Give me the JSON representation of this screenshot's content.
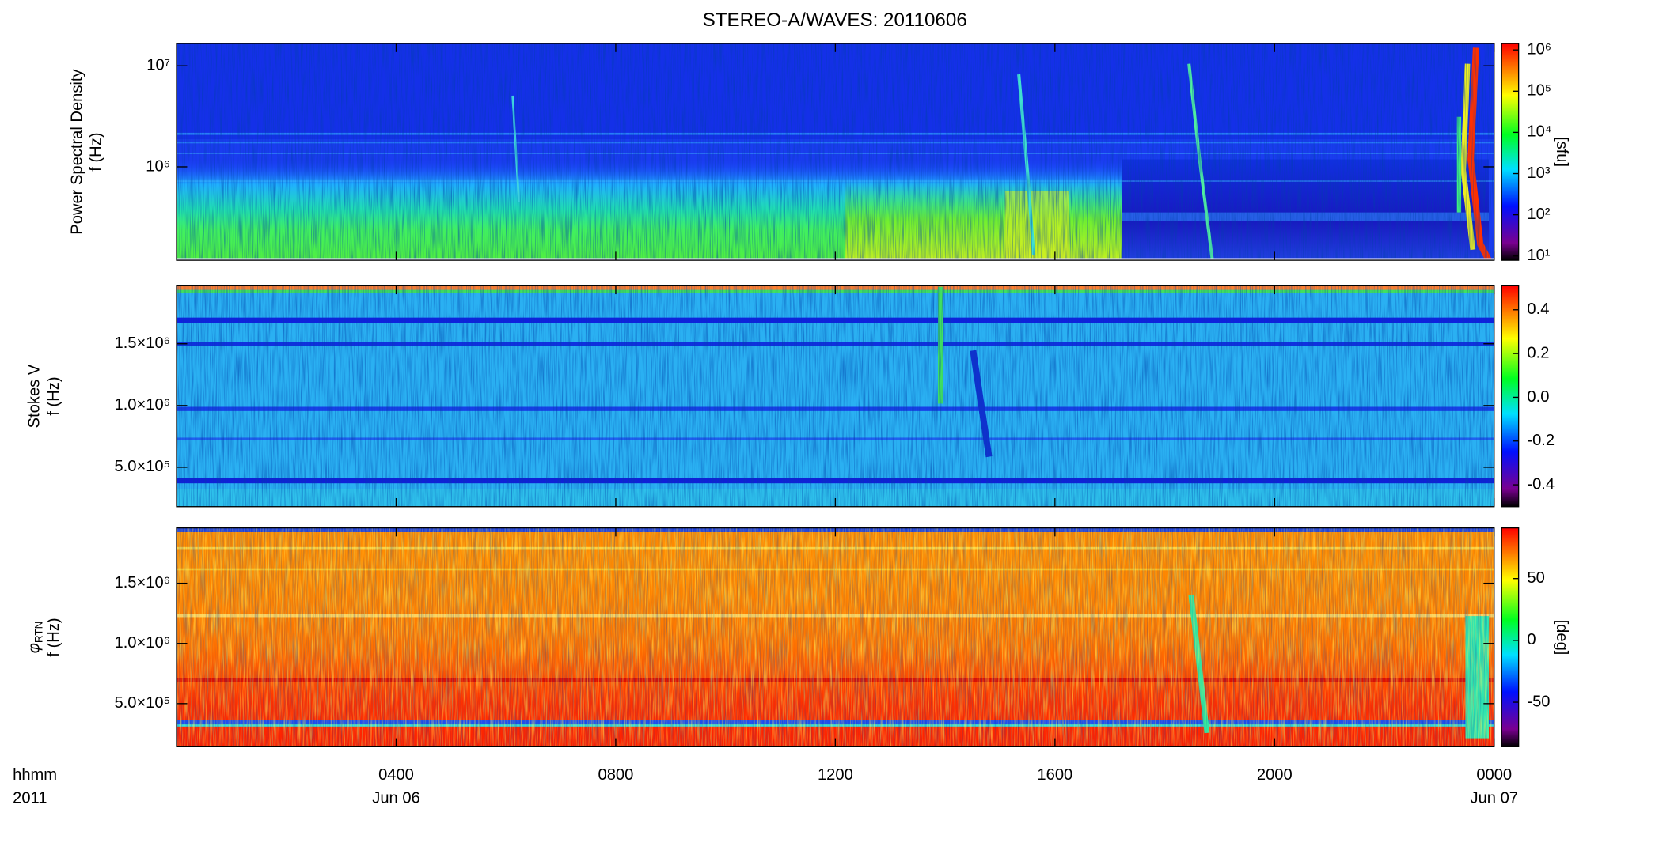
{
  "chart_data": [
    {
      "type": "spectrogram",
      "title": "STEREO-A/WAVES: 20110606",
      "ylabel": [
        "Power Spectral Density",
        "f (Hz)"
      ],
      "yscale": "log",
      "ylim": [
        119000,
        16600000
      ],
      "yticks": [
        {
          "value": 1000000,
          "label": "10⁶"
        },
        {
          "value": 10000000,
          "label": "10⁷"
        }
      ],
      "colorbar": {
        "scale": "log",
        "clim": [
          7.9,
          1430000
        ],
        "label": "[sfu]",
        "ticks": [
          {
            "value": 10,
            "label": "10¹"
          },
          {
            "value": 100,
            "label": "10²"
          },
          {
            "value": 1000,
            "label": "10³"
          },
          {
            "value": 10000,
            "label": "10⁴"
          },
          {
            "value": 100000,
            "label": "10⁵"
          },
          {
            "value": 1000000,
            "label": "10⁶"
          }
        ]
      }
    },
    {
      "type": "spectrogram",
      "ylabel": [
        "Stokes V",
        "f (Hz)"
      ],
      "yscale": "linear",
      "ylim": [
        181000,
        1970000
      ],
      "yticks": [
        {
          "value": 500000,
          "label": "5.0×10⁵"
        },
        {
          "value": 1000000,
          "label": "1.0×10⁶"
        },
        {
          "value": 1500000,
          "label": "1.5×10⁶"
        }
      ],
      "colorbar": {
        "scale": "linear",
        "clim": [
          -0.5,
          0.51
        ],
        "ticks": [
          {
            "value": -0.4,
            "label": "-0.4"
          },
          {
            "value": -0.2,
            "label": "-0.2"
          },
          {
            "value": 0,
            "label": "0.0"
          },
          {
            "value": 0.2,
            "label": "0.2"
          },
          {
            "value": 0.4,
            "label": "0.4"
          }
        ]
      }
    },
    {
      "type": "spectrogram",
      "ylabel_symbol": "φ",
      "ylabel_subscript": "RTN",
      "ylabel": [
        "f (Hz)"
      ],
      "yscale": "linear",
      "ylim": [
        142000,
        1960000
      ],
      "yticks": [
        {
          "value": 500000,
          "label": "5.0×10⁵"
        },
        {
          "value": 1000000,
          "label": "1.0×10⁶"
        },
        {
          "value": 1500000,
          "label": "1.5×10⁶"
        }
      ],
      "colorbar": {
        "scale": "linear",
        "clim": [
          -86,
          91
        ],
        "label": "[deg]",
        "ticks": [
          -50,
          0,
          50
        ]
      },
      "xlabel": "hhmm",
      "year_label": "2011",
      "xlim": [
        0,
        24
      ],
      "xticks": [
        {
          "value": 4,
          "label": "0400"
        },
        {
          "value": 8,
          "label": "0800"
        },
        {
          "value": 12,
          "label": "1200"
        },
        {
          "value": 16,
          "label": "1600"
        },
        {
          "value": 20,
          "label": "2000"
        },
        {
          "value": 24,
          "label": "0000"
        }
      ],
      "date_labels": [
        {
          "value": 4,
          "label": "Jun 06"
        },
        {
          "value": 24,
          "label": "Jun 07"
        }
      ]
    }
  ]
}
